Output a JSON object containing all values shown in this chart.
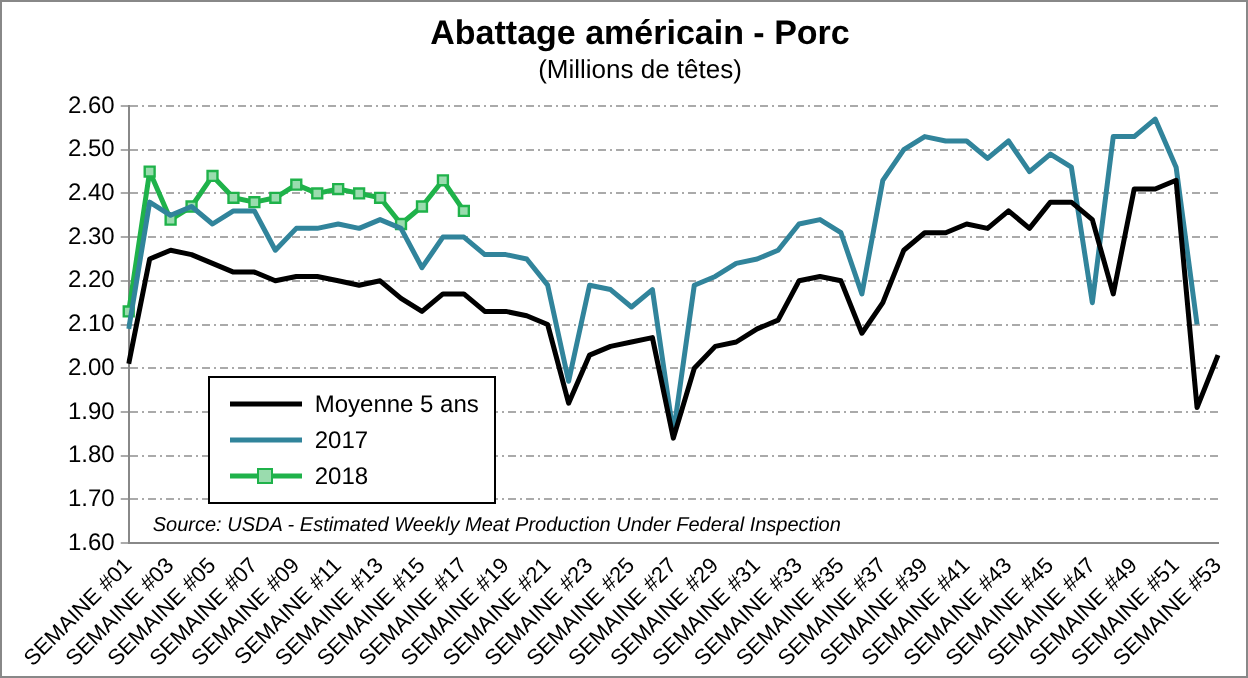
{
  "chart_data": {
    "type": "line",
    "title": "Abattage américain - Porc",
    "subtitle": "(Millions de têtes)",
    "categories": [
      "SEMAINE #01",
      null,
      "SEMAINE #03",
      null,
      "SEMAINE #05",
      null,
      "SEMAINE #07",
      null,
      "SEMAINE #09",
      null,
      "SEMAINE #11",
      null,
      "SEMAINE #13",
      null,
      "SEMAINE #15",
      null,
      "SEMAINE #17",
      null,
      "SEMAINE #19",
      null,
      "SEMAINE #21",
      null,
      "SEMAINE #23",
      null,
      "SEMAINE #25",
      null,
      "SEMAINE #27",
      null,
      "SEMAINE #29",
      null,
      "SEMAINE #31",
      null,
      "SEMAINE #33",
      null,
      "SEMAINE #35",
      null,
      "SEMAINE #37",
      null,
      "SEMAINE #39",
      null,
      "SEMAINE #41",
      null,
      "SEMAINE #43",
      null,
      "SEMAINE #45",
      null,
      "SEMAINE #47",
      null,
      "SEMAINE #49",
      null,
      "SEMAINE #51",
      null,
      "SEMAINE #53"
    ],
    "series": [
      {
        "name": "Moyenne 5 ans",
        "color": "#000000",
        "marker": "none",
        "values": [
          2.01,
          2.25,
          2.27,
          2.26,
          2.24,
          2.22,
          2.22,
          2.2,
          2.21,
          2.21,
          2.2,
          2.19,
          2.2,
          2.16,
          2.13,
          2.17,
          2.17,
          2.13,
          2.13,
          2.12,
          2.1,
          1.92,
          2.03,
          2.05,
          2.06,
          2.07,
          1.84,
          2.0,
          2.05,
          2.06,
          2.09,
          2.11,
          2.2,
          2.21,
          2.2,
          2.08,
          2.15,
          2.27,
          2.31,
          2.31,
          2.33,
          2.32,
          2.36,
          2.32,
          2.38,
          2.38,
          2.34,
          2.17,
          2.41,
          2.41,
          2.43,
          1.91,
          2.03
        ]
      },
      {
        "name": "2017",
        "color": "#31849b",
        "marker": "none",
        "values": [
          2.09,
          2.38,
          2.35,
          2.37,
          2.33,
          2.36,
          2.36,
          2.27,
          2.32,
          2.32,
          2.33,
          2.32,
          2.34,
          2.32,
          2.23,
          2.3,
          2.3,
          2.26,
          2.26,
          2.25,
          2.19,
          1.97,
          2.19,
          2.18,
          2.14,
          2.18,
          1.85,
          2.19,
          2.21,
          2.24,
          2.25,
          2.27,
          2.33,
          2.34,
          2.31,
          2.17,
          2.43,
          2.5,
          2.53,
          2.52,
          2.52,
          2.48,
          2.52,
          2.45,
          2.49,
          2.46,
          2.15,
          2.53,
          2.53,
          2.57,
          2.46,
          2.1,
          null
        ]
      },
      {
        "name": "2018",
        "color": "#1fb24a",
        "marker": "square",
        "values": [
          2.13,
          2.45,
          2.34,
          2.37,
          2.44,
          2.39,
          2.38,
          2.39,
          2.42,
          2.4,
          2.41,
          2.4,
          2.39,
          2.33,
          2.37,
          2.43,
          2.36,
          null,
          null,
          null,
          null,
          null,
          null,
          null,
          null,
          null,
          null,
          null,
          null,
          null,
          null,
          null,
          null,
          null,
          null,
          null,
          null,
          null,
          null,
          null,
          null,
          null,
          null,
          null,
          null,
          null,
          null,
          null,
          null,
          null,
          null,
          null,
          null
        ]
      }
    ],
    "ylim": [
      1.6,
      2.6
    ],
    "yticks": [
      {
        "value": 1.6,
        "label": "1.60"
      },
      {
        "value": 1.7,
        "label": "1.70"
      },
      {
        "value": 1.8,
        "label": "1.80"
      },
      {
        "value": 1.9,
        "label": "1.90"
      },
      {
        "value": 2.0,
        "label": "2.00"
      },
      {
        "value": 2.1,
        "label": "2.10"
      },
      {
        "value": 2.2,
        "label": "2.20"
      },
      {
        "value": 2.3,
        "label": "2.30"
      },
      {
        "value": 2.4,
        "label": "2.40"
      },
      {
        "value": 2.5,
        "label": "2.50"
      },
      {
        "value": 2.6,
        "label": "2.60"
      }
    ],
    "grid": "y",
    "legend": "bottom left",
    "annotations": [
      "Source: USDA - Estimated Weekly Meat Production Under Federal Inspection"
    ]
  }
}
